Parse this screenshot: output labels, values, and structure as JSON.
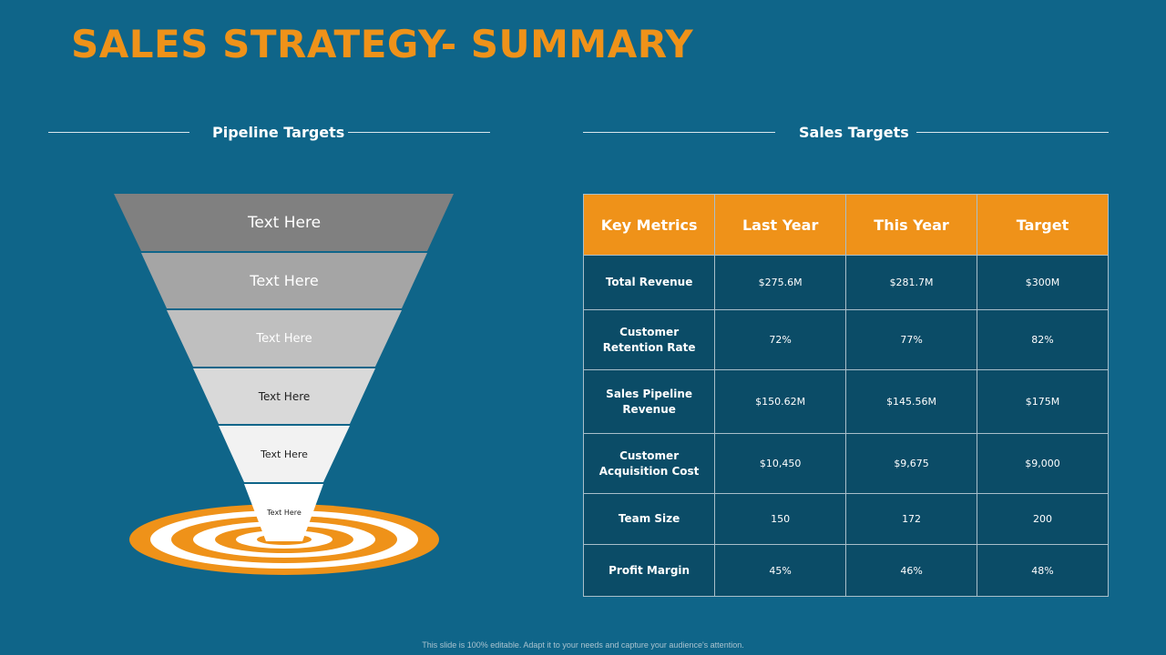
{
  "title": "SALES STRATEGY- SUMMARY",
  "pipeline": {
    "heading": "Pipeline Targets",
    "levels": [
      "Text Here",
      "Text Here",
      "Text Here",
      "Text Here",
      "Text Here",
      "Text Here"
    ]
  },
  "sales": {
    "heading": "Sales Targets",
    "columns": [
      "Key Metrics",
      "Last Year",
      "This Year",
      "Target"
    ],
    "rows": [
      {
        "metric": "Total Revenue",
        "last": "$275.6M",
        "this": "$281.7M",
        "target": "$300M"
      },
      {
        "metric": "Customer Retention Rate",
        "last": "72%",
        "this": "77%",
        "target": "82%"
      },
      {
        "metric": "Sales Pipeline Revenue",
        "last": "$150.62M",
        "this": "$145.56M",
        "target": "$175M"
      },
      {
        "metric": "Customer Acquisition Cost",
        "last": "$10,450",
        "this": "$9,675",
        "target": "$9,000"
      },
      {
        "metric": "Team Size",
        "last": "150",
        "this": "172",
        "target": "200"
      },
      {
        "metric": "Profit Margin",
        "last": "45%",
        "this": "46%",
        "target": "48%"
      }
    ]
  },
  "footer": "This slide is 100% editable. Adapt it to your needs and capture your audience's attention.",
  "colors": {
    "accent": "#ef9219",
    "background": "#0f6589",
    "table_body": "#0b4c67"
  }
}
